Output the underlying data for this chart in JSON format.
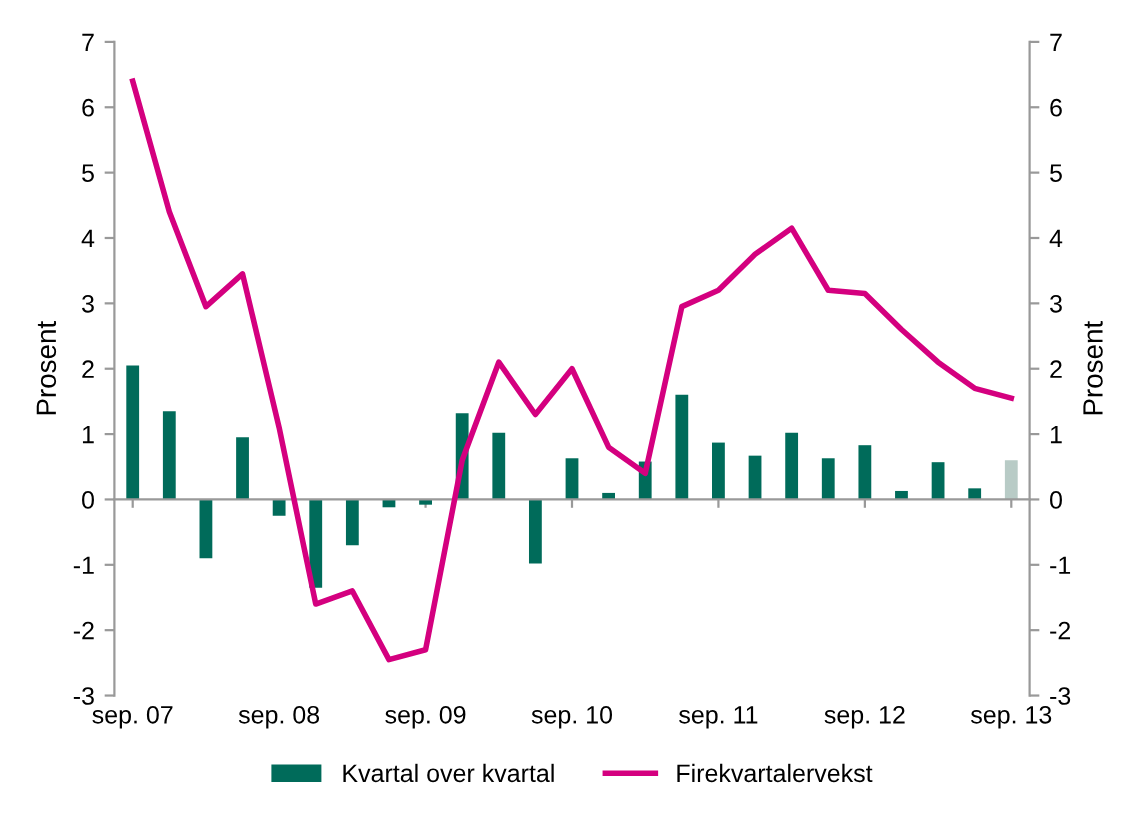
{
  "chart_data": {
    "type": "bar",
    "categories": [
      "sep. 07",
      null,
      null,
      null,
      "sep. 08",
      null,
      null,
      null,
      "sep. 09",
      null,
      null,
      null,
      "sep. 10",
      null,
      null,
      null,
      "sep. 11",
      null,
      null,
      null,
      "sep. 12",
      null,
      null,
      null,
      "sep. 13"
    ],
    "ylabel": "Prosent",
    "y2label": "Prosent",
    "ylim": [
      -3,
      7
    ],
    "yticks": [
      -3,
      -2,
      -1,
      0,
      1,
      2,
      3,
      4,
      5,
      6,
      7
    ],
    "y2lim": [
      -3,
      7
    ],
    "y2ticks": [
      -3,
      -2,
      -1,
      0,
      1,
      2,
      3,
      4,
      5,
      6,
      7
    ],
    "series": [
      {
        "name": "Kvartal over kvartal",
        "color": "#006b5a",
        "colors": [
          "#006b5a",
          "#006b5a",
          "#006b5a",
          "#006b5a",
          "#006b5a",
          "#006b5a",
          "#006b5a",
          "#006b5a",
          "#006b5a",
          "#006b5a",
          "#006b5a",
          "#006b5a",
          "#006b5a",
          "#006b5a",
          "#006b5a",
          "#006b5a",
          "#006b5a",
          "#006b5a",
          "#006b5a",
          "#006b5a",
          "#006b5a",
          "#006b5a",
          "#006b5a",
          "#006b5a",
          "#b8cbc6"
        ],
        "values": [
          2.05,
          1.35,
          -0.9,
          0.95,
          -0.25,
          -1.35,
          -0.7,
          -0.12,
          -0.08,
          1.32,
          1.02,
          -0.98,
          0.63,
          0.1,
          0.58,
          1.6,
          0.87,
          0.67,
          1.02,
          0.63,
          0.83,
          0.13,
          0.57,
          0.17,
          0.6
        ]
      },
      {
        "name": "Firekvartalervekst",
        "type": "line",
        "color": "#d4007f",
        "values": [
          6.4,
          4.4,
          2.95,
          3.45,
          1.1,
          -1.6,
          -1.4,
          -2.45,
          -2.3,
          0.6,
          2.1,
          1.3,
          2.0,
          0.8,
          0.4,
          2.95,
          3.2,
          3.75,
          4.15,
          3.2,
          3.15,
          2.6,
          2.1,
          1.7,
          1.55
        ]
      }
    ],
    "legend": "bottom",
    "marker": "none",
    "line_style": "solid"
  }
}
